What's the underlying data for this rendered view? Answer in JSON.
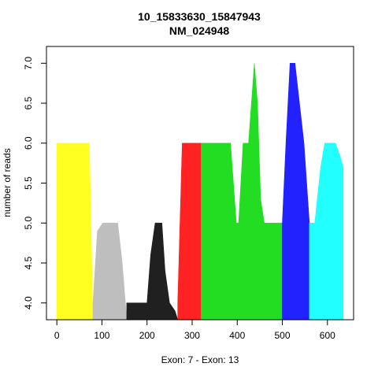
{
  "chart_data": {
    "type": "area",
    "title_line1": "10_15833630_15847943",
    "title_line2": "NM_024948",
    "xlabel": "Exon: 7 - Exon: 13",
    "ylabel": "number of reads",
    "xlim": [
      -23,
      658
    ],
    "ylim": [
      3.79,
      7.21
    ],
    "x_ticks": [
      0,
      100,
      200,
      300,
      400,
      500,
      600
    ],
    "y_ticks": [
      4.0,
      4.5,
      5.0,
      5.5,
      6.0,
      6.5,
      7.0
    ],
    "baseline": 3.79,
    "series": [
      {
        "color": "#ffff22",
        "points": [
          [
            0,
            3.79
          ],
          [
            0,
            6
          ],
          [
            72,
            6
          ],
          [
            80,
            3.79
          ]
        ]
      },
      {
        "color": "#bebebe",
        "points": [
          [
            80,
            3.79
          ],
          [
            80,
            4.0
          ],
          [
            90,
            4.9
          ],
          [
            102,
            5.0
          ],
          [
            135,
            5.0
          ],
          [
            145,
            4.5
          ],
          [
            155,
            3.79
          ]
        ]
      },
      {
        "color": "#202020",
        "points": [
          [
            155,
            3.79
          ],
          [
            155,
            4.0
          ],
          [
            200,
            4.0
          ],
          [
            208,
            4.6
          ],
          [
            218,
            5.0
          ],
          [
            233,
            5.0
          ],
          [
            240,
            4.4
          ],
          [
            250,
            4.0
          ],
          [
            262,
            3.9
          ],
          [
            268,
            3.79
          ]
        ]
      },
      {
        "color": "#ff2222",
        "points": [
          [
            268,
            3.79
          ],
          [
            268,
            4.0
          ],
          [
            278,
            6.0
          ],
          [
            320,
            6.0
          ],
          [
            320,
            3.79
          ]
        ]
      },
      {
        "color": "#22dd22",
        "points": [
          [
            320,
            3.79
          ],
          [
            320,
            6.0
          ],
          [
            385,
            6.0
          ],
          [
            398,
            5.0
          ],
          [
            403,
            5.0
          ],
          [
            413,
            6.0
          ],
          [
            425,
            6.0
          ],
          [
            438,
            7.0
          ],
          [
            445,
            6.5
          ],
          [
            452,
            5.3
          ],
          [
            460,
            5.0
          ],
          [
            500,
            5.0
          ],
          [
            500,
            3.79
          ]
        ]
      },
      {
        "color": "#2222ff",
        "points": [
          [
            500,
            3.79
          ],
          [
            500,
            5.0
          ],
          [
            508,
            6.0
          ],
          [
            517,
            7.0
          ],
          [
            528,
            7.0
          ],
          [
            538,
            6.5
          ],
          [
            548,
            6.0
          ],
          [
            560,
            5.0
          ],
          [
            560,
            3.79
          ]
        ]
      },
      {
        "color": "#22ffff",
        "points": [
          [
            560,
            3.79
          ],
          [
            560,
            5.0
          ],
          [
            568,
            5.0
          ],
          [
            572,
            5.0
          ],
          [
            585,
            5.7
          ],
          [
            594,
            6.0
          ],
          [
            618,
            6.0
          ],
          [
            630,
            5.8
          ],
          [
            635,
            5.7
          ],
          [
            635,
            3.79
          ]
        ]
      }
    ]
  }
}
